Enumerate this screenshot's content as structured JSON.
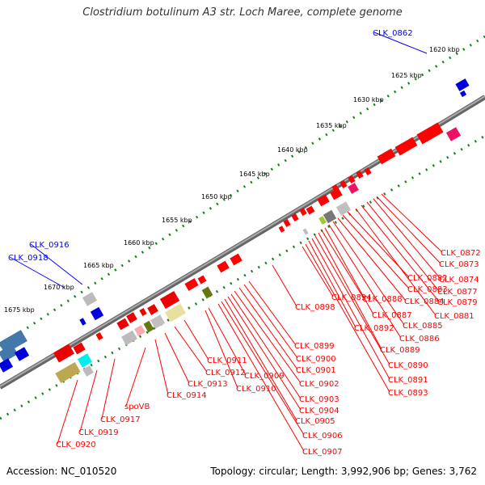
{
  "title": "Clostridium botulinum A3 str. Loch Maree, complete genome",
  "footer": {
    "accession": "Accession: NC_010520",
    "summary": "Topology: circular; Length: 3,992,906 bp; Genes: 3,762"
  },
  "colors": {
    "forward": "#ff0000",
    "reverse": "#0000ff",
    "backbone": "#888888",
    "ticks": "#008000"
  },
  "kbp_labels": [
    "1620 kbp",
    "1625 kbp",
    "1630 kbp",
    "1635 kbp",
    "1640 kbp",
    "1645 kbp",
    "1650 kbp",
    "1655 kbp",
    "1660 kbp",
    "1665 kbp",
    "1670 kbp",
    "1675 kbp"
  ],
  "genes_blue": [
    "CLK_0862",
    "CLK_0916",
    "CLK_0918"
  ],
  "genes_red": [
    "CLK_0872",
    "CLK_0873",
    "CLK_0874",
    "CLK_0877",
    "CLK_0879",
    "CLK_0881",
    "CLK_0882",
    "CLK_0883",
    "CLK_0884",
    "CLK_0885",
    "CLK_0886",
    "CLK_0887",
    "CLK_0888",
    "CLK_0889",
    "CLK_0890",
    "CLK_0891",
    "CLK_0892",
    "CLK_0893",
    "CLK_0894",
    "CLK_0898",
    "CLK_0899",
    "CLK_0900",
    "CLK_0901",
    "CLK_0902",
    "CLK_0903",
    "CLK_0904",
    "CLK_0905",
    "CLK_0906",
    "CLK_0907",
    "CLK_0909",
    "CLK_0910",
    "CLK_0911",
    "CLK_0912",
    "CLK_0913",
    "CLK_0914",
    "spoVB",
    "CLK_0917",
    "CLK_0919",
    "CLK_0920"
  ]
}
